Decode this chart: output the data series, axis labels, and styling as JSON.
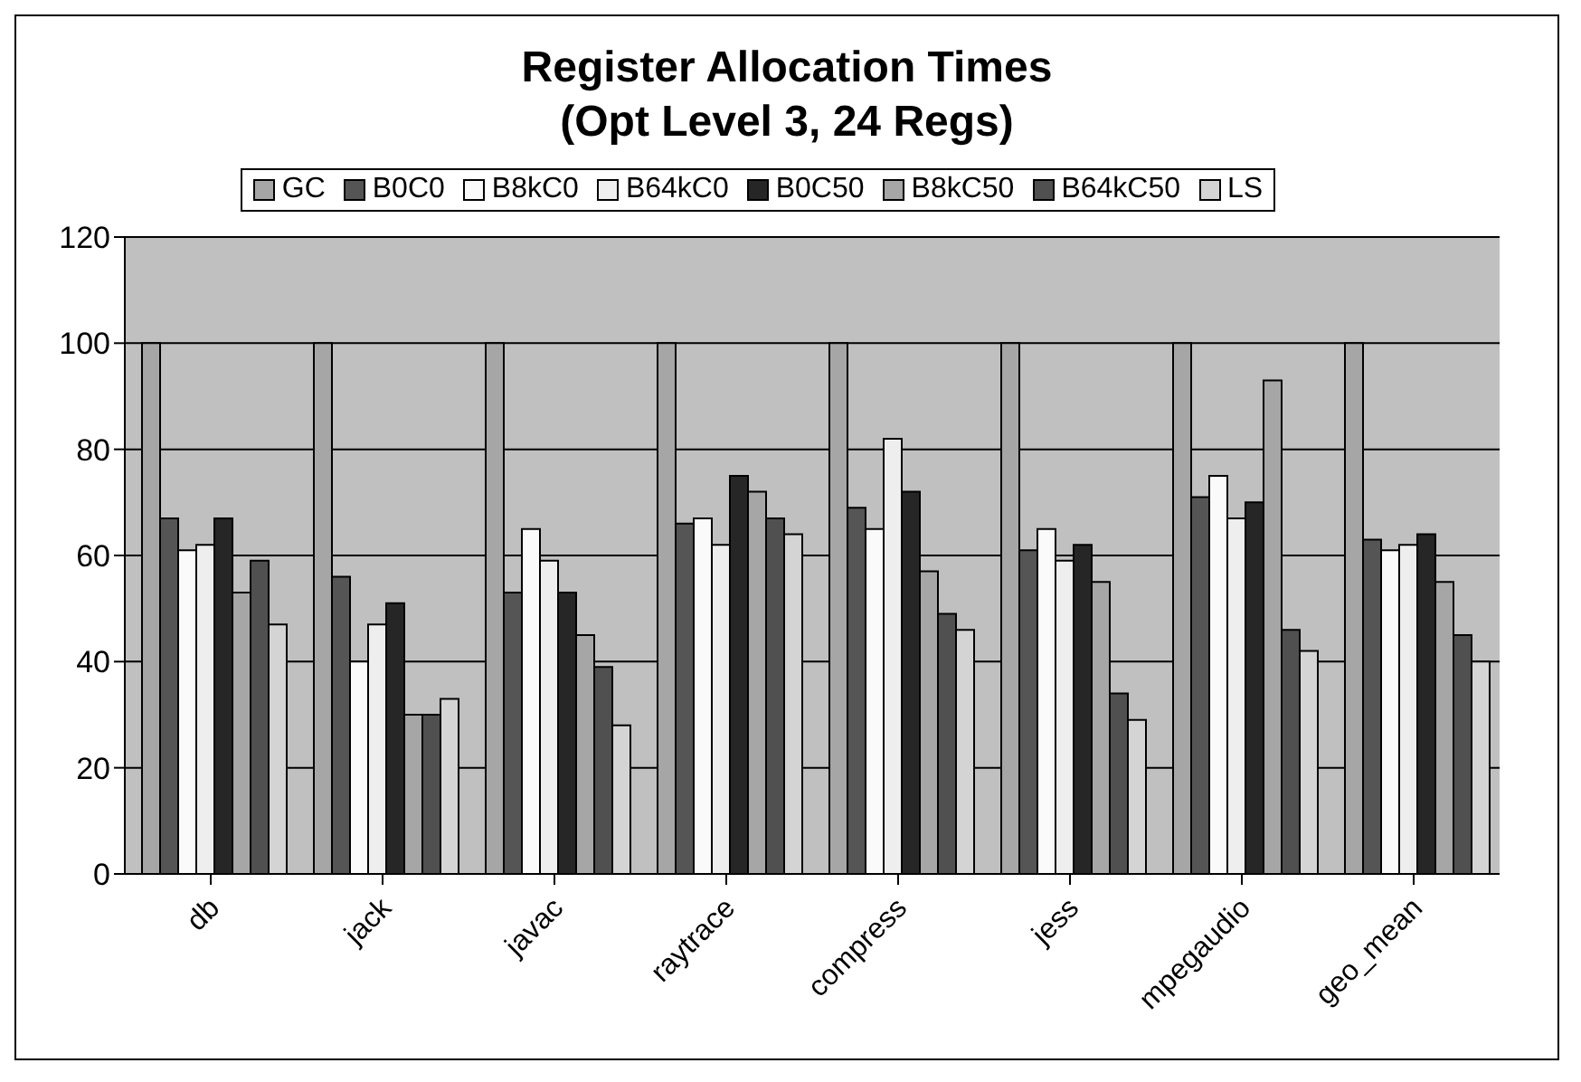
{
  "chart_data": {
    "type": "bar",
    "title": "Register Allocation Times",
    "subtitle": "(Opt Level 3, 24 Regs)",
    "categories": [
      "db",
      "jack",
      "javac",
      "raytrace",
      "compress",
      "jess",
      "mpegaudio",
      "geo_mean"
    ],
    "series": [
      {
        "name": "GC",
        "color": "#a6a6a6",
        "values": [
          100,
          100,
          100,
          100,
          100,
          100,
          100,
          100
        ]
      },
      {
        "name": "B0C0",
        "color": "#555555",
        "values": [
          67,
          56,
          53,
          66,
          69,
          61,
          71,
          63
        ]
      },
      {
        "name": "B8kC0",
        "color": "#fafafa",
        "values": [
          61,
          40,
          65,
          67,
          65,
          65,
          75,
          61
        ]
      },
      {
        "name": "B64kC0",
        "color": "#eeeeee",
        "values": [
          62,
          47,
          59,
          62,
          82,
          59,
          67,
          62
        ]
      },
      {
        "name": "B0C50",
        "color": "#262626",
        "values": [
          67,
          51,
          53,
          75,
          72,
          62,
          70,
          64
        ]
      },
      {
        "name": "B8kC50",
        "color": "#a6a6a6",
        "values": [
          53,
          30,
          45,
          72,
          57,
          55,
          93,
          55
        ]
      },
      {
        "name": "B64kC50",
        "color": "#505050",
        "values": [
          59,
          30,
          39,
          67,
          49,
          34,
          46,
          45
        ]
      },
      {
        "name": "LS",
        "color": "#d4d4d4",
        "values": [
          47,
          33,
          28,
          64,
          46,
          29,
          42,
          40
        ]
      }
    ],
    "ylim": [
      0,
      120
    ],
    "yticks": [
      0,
      20,
      40,
      60,
      80,
      100,
      120
    ],
    "grid": "y",
    "legend": "top"
  }
}
